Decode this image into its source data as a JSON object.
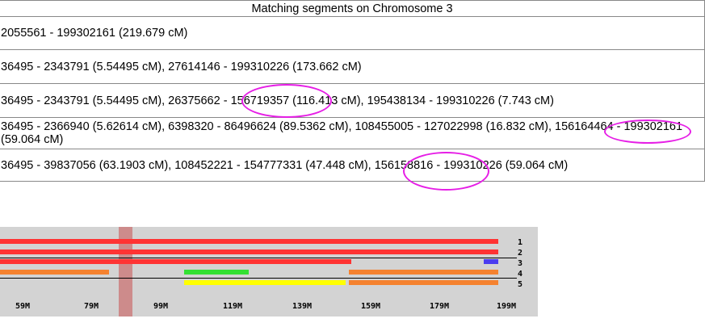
{
  "table": {
    "header": "Matching segments on Chromosome 3",
    "rows": [
      "2055561 - 199302161 (219.679 cM)",
      "36495 - 2343791 (5.54495 cM), 27614146 - 199310226 (173.662 cM)",
      "36495 - 2343791 (5.54495 cM), 26375662 - 156719357 (116.413 cM), 195438134 - 199310226 (7.743 cM)",
      "36495 - 2366940 (5.62614 cM), 6398320 - 86496624 (89.5362 cM), 108455005 - 127022998 (16.832 cM), 156164464 - 199302161 (59.064 cM)",
      "36495 - 39837056 (63.1903 cM), 108452221 - 154777331 (47.448 cM), 156158816 - 199310226 (59.064 cM)"
    ]
  },
  "browser": {
    "axis_labels": [
      "59M",
      "79M",
      "99M",
      "119M",
      "139M",
      "159M",
      "179M",
      "199M"
    ],
    "track_numbers": [
      "1",
      "2",
      "3",
      "4",
      "5"
    ],
    "colors": {
      "background": "#d3d3d3",
      "red": "#ff3333",
      "blue": "#4a3cf0",
      "orange": "#f5822f",
      "green": "#33e033",
      "yellow": "#ffff00",
      "marker": "#cd8b8b",
      "annotation": "#e61ee6"
    }
  }
}
